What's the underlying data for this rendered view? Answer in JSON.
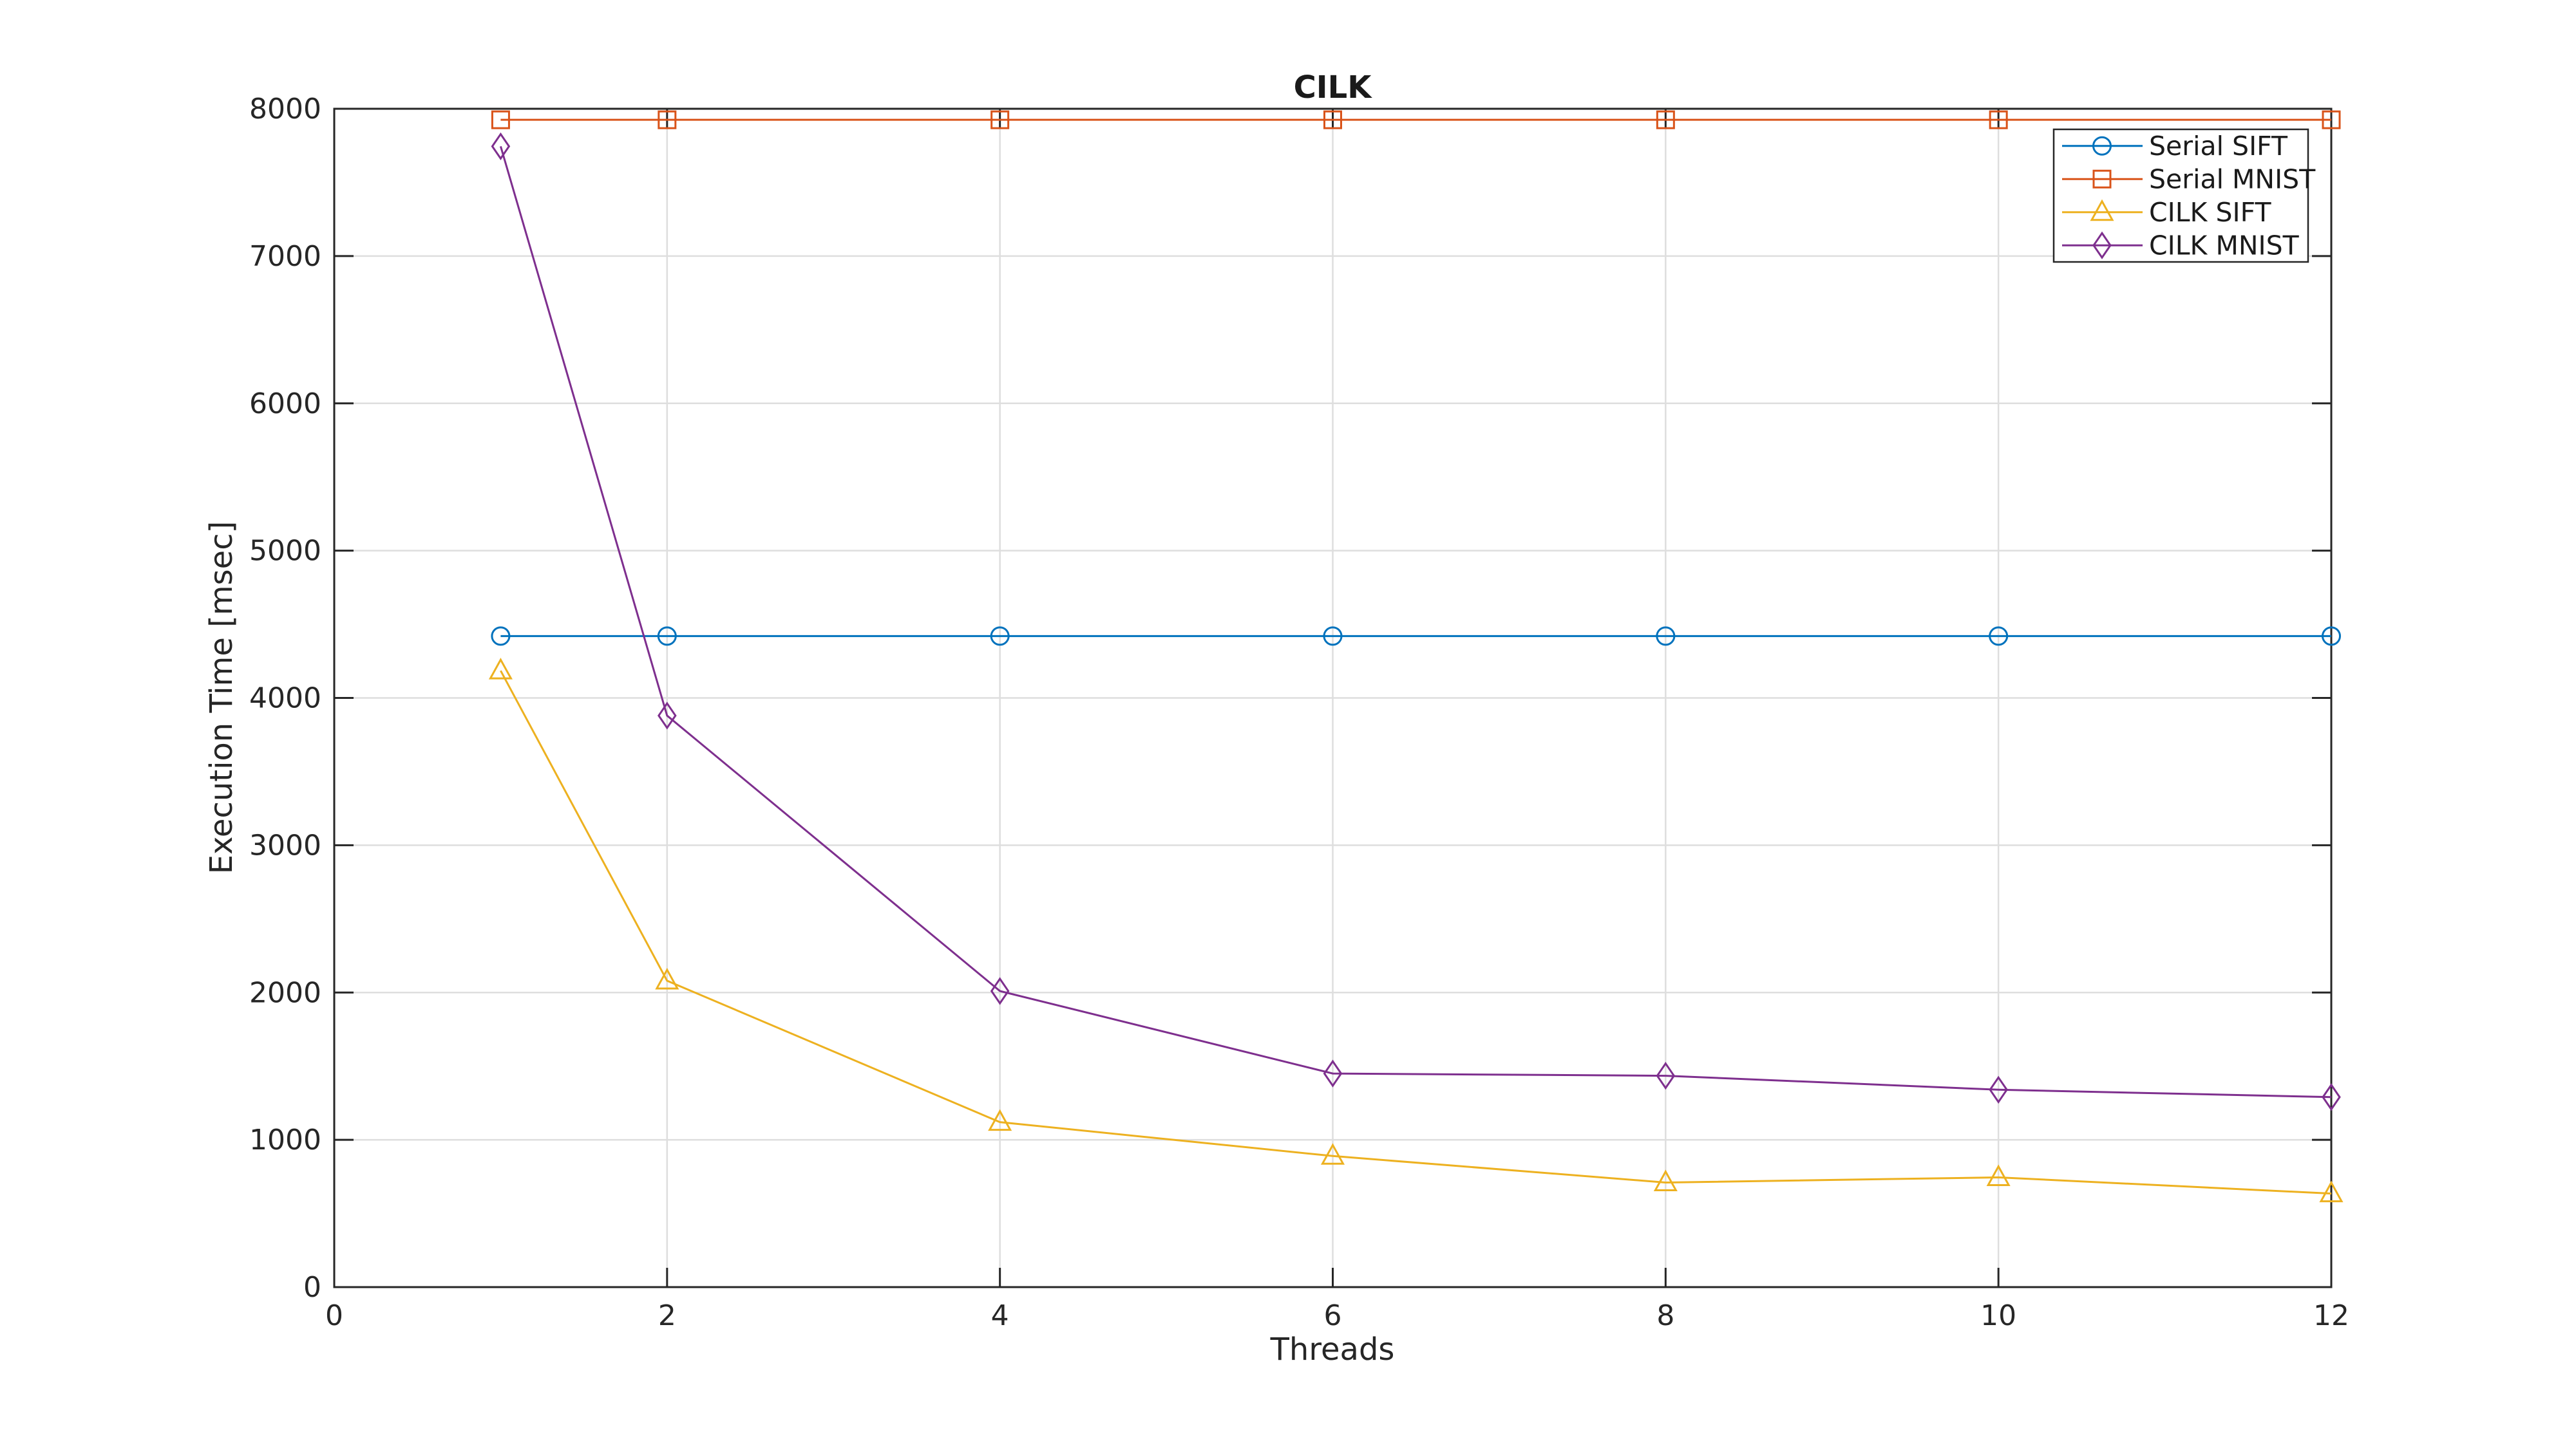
{
  "chart_data": {
    "type": "line",
    "title": "CILK",
    "xlabel": "Threads",
    "ylabel": "Execution Time [msec]",
    "xlim": [
      0,
      12
    ],
    "ylim": [
      0,
      8000
    ],
    "xticks": [
      0,
      2,
      4,
      6,
      8,
      10,
      12
    ],
    "yticks": [
      0,
      1000,
      2000,
      3000,
      4000,
      5000,
      6000,
      7000,
      8000
    ],
    "grid": true,
    "legend_position": "top-right",
    "x": [
      1,
      2,
      4,
      6,
      8,
      10,
      12
    ],
    "series": [
      {
        "name": "Serial SIFT",
        "color": "#0072BD",
        "marker": "circle",
        "values": [
          4420,
          4420,
          4420,
          4420,
          4420,
          4420,
          4420
        ]
      },
      {
        "name": "Serial MNIST",
        "color": "#D95319",
        "marker": "square",
        "values": [
          7925,
          7925,
          7925,
          7925,
          7925,
          7925,
          7925
        ]
      },
      {
        "name": "CILK SIFT",
        "color": "#EDB120",
        "marker": "triangle",
        "values": [
          4185,
          2080,
          1120,
          890,
          710,
          745,
          635
        ]
      },
      {
        "name": "CILK MNIST",
        "color": "#7E2F8E",
        "marker": "diamond",
        "values": [
          7745,
          3880,
          2010,
          1450,
          1435,
          1340,
          1290
        ]
      }
    ],
    "axis_color": "#262626",
    "grid_color": "#dedede",
    "text_color": "#262626",
    "title_color": "#1a1a1a",
    "background_color": "#ffffff"
  }
}
